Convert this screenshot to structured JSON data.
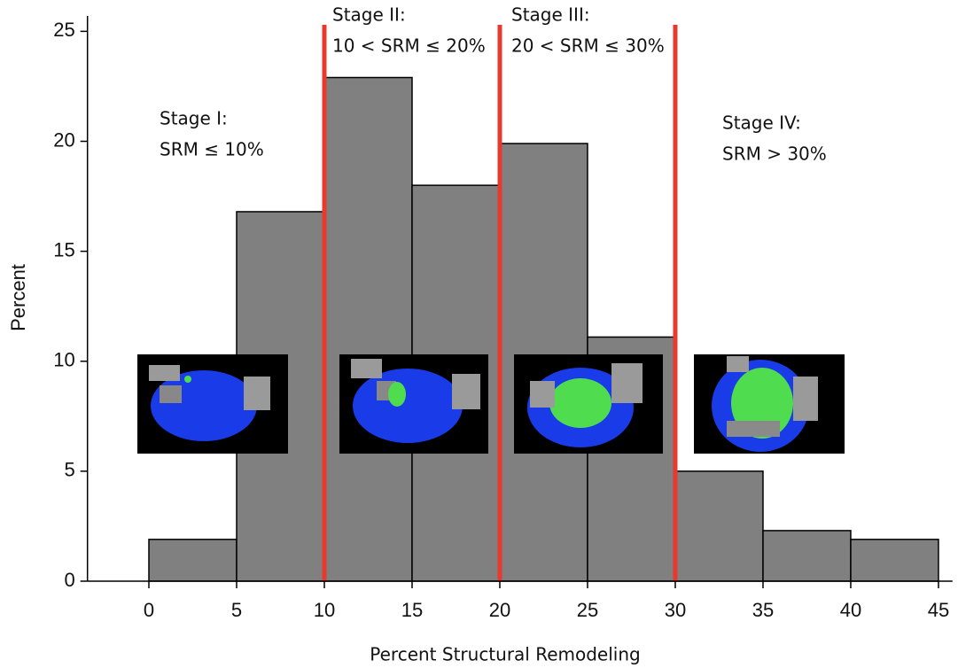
{
  "chart_data": {
    "type": "histogram",
    "xlabel": "Percent Structural Remodeling",
    "ylabel": "Percent",
    "bins": [
      0,
      5,
      10,
      15,
      20,
      25,
      30,
      35,
      40,
      45
    ],
    "values": [
      1.9,
      16.8,
      22.9,
      18.0,
      19.9,
      11.1,
      5.0,
      2.3,
      1.9
    ],
    "color": "#808080",
    "xlim": [
      -3.5,
      45.8
    ],
    "ylim": [
      0,
      25.7
    ],
    "xticks": [
      0,
      5,
      10,
      15,
      20,
      25,
      30,
      35,
      40,
      45
    ],
    "yticks": [
      0,
      5,
      10,
      15,
      20,
      25
    ],
    "thresholds": [
      10,
      20,
      30
    ],
    "threshold_color": "#e8392f",
    "annotations": [
      [
        "Stage I:",
        "SRM ≤ 10%"
      ],
      [
        "Stage II:",
        "10 < SRM ≤ 20%"
      ],
      [
        "Stage III:",
        "20 < SRM ≤ 30%"
      ],
      [
        "Stage IV:",
        "SRM > 30%"
      ]
    ]
  }
}
